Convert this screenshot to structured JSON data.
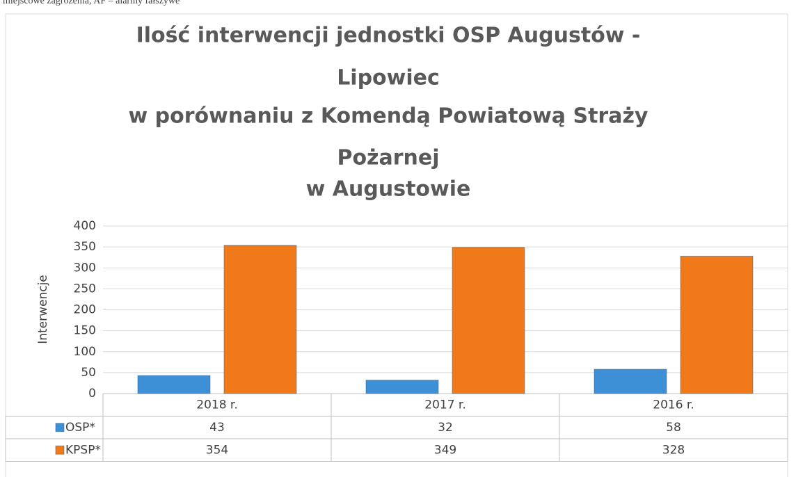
{
  "chart_data": {
    "type": "bar",
    "note": "miejscowe zagrożenia, AF – alarmy fałszywe",
    "title": [
      "Ilość interwencji jednostki OSP Augustów -",
      "Lipowiec",
      "w porównaniu z Komendą Powiatową Straży",
      "Pożarnej",
      "w Augustowie"
    ],
    "ylabel": "Interwencje",
    "categories": [
      "2018 r.",
      "2017 r.",
      "2016 r."
    ],
    "series": [
      {
        "name": "OSP*",
        "color": "#3d8fd6",
        "values": [
          43,
          32,
          58
        ]
      },
      {
        "name": "KPSP*",
        "color": "#f07a1a",
        "values": [
          354,
          349,
          328
        ]
      }
    ],
    "ylim": [
      0,
      400
    ],
    "yticks": [
      0,
      50,
      100,
      150,
      200,
      250,
      300,
      350,
      400
    ],
    "grid": true,
    "legend": "table"
  }
}
